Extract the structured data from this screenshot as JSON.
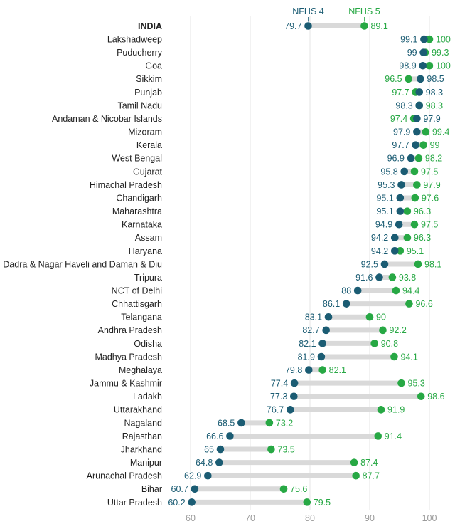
{
  "chart_data": {
    "type": "dumbbell",
    "series": [
      {
        "name": "NFHS 4",
        "color": "#1b5c73"
      },
      {
        "name": "NFHS 5",
        "color": "#27a844"
      }
    ],
    "xlim": [
      55,
      102
    ],
    "xticks": [
      60,
      70,
      80,
      90,
      100
    ],
    "tick_labels": [
      "60",
      "70",
      "80",
      "90",
      "100"
    ],
    "rows": [
      {
        "label": "INDIA",
        "bold": true,
        "nfhs4": 79.7,
        "nfhs5": 89.1,
        "nfhs4_text": "79.7",
        "nfhs5_text": "89.1"
      },
      {
        "label": "Lakshadweep",
        "nfhs4": 99.1,
        "nfhs5": 100,
        "nfhs4_text": "99.1",
        "nfhs5_text": "100"
      },
      {
        "label": "Puducherry",
        "nfhs4": 99,
        "nfhs5": 99.3,
        "nfhs4_text": "99",
        "nfhs5_text": "99.3"
      },
      {
        "label": "Goa",
        "nfhs4": 98.9,
        "nfhs5": 100,
        "nfhs4_text": "98.9",
        "nfhs5_text": "100"
      },
      {
        "label": "Sikkim",
        "nfhs4": 98.5,
        "nfhs5": 96.5,
        "nfhs4_text": "98.5",
        "nfhs5_text": "96.5"
      },
      {
        "label": "Punjab",
        "nfhs4": 98.3,
        "nfhs5": 97.7,
        "nfhs4_text": "98.3",
        "nfhs5_text": "97.7"
      },
      {
        "label": "Tamil Nadu",
        "nfhs4": 98.3,
        "nfhs5": 98.3,
        "nfhs4_text": "98.3",
        "nfhs5_text": "98.3"
      },
      {
        "label": "Andaman & Nicobar Islands",
        "nfhs4": 97.9,
        "nfhs5": 97.4,
        "nfhs4_text": "97.9",
        "nfhs5_text": "97.4"
      },
      {
        "label": "Mizoram",
        "nfhs4": 97.9,
        "nfhs5": 99.4,
        "nfhs4_text": "97.9",
        "nfhs5_text": "99.4"
      },
      {
        "label": "Kerala",
        "nfhs4": 97.7,
        "nfhs5": 99,
        "nfhs4_text": "97.7",
        "nfhs5_text": "99"
      },
      {
        "label": "West Bengal",
        "nfhs4": 96.9,
        "nfhs5": 98.2,
        "nfhs4_text": "96.9",
        "nfhs5_text": "98.2"
      },
      {
        "label": "Gujarat",
        "nfhs4": 95.8,
        "nfhs5": 97.5,
        "nfhs4_text": "95.8",
        "nfhs5_text": "97.5"
      },
      {
        "label": "Himachal Pradesh",
        "nfhs4": 95.3,
        "nfhs5": 97.9,
        "nfhs4_text": "95.3",
        "nfhs5_text": "97.9"
      },
      {
        "label": "Chandigarh",
        "nfhs4": 95.1,
        "nfhs5": 97.6,
        "nfhs4_text": "95.1",
        "nfhs5_text": "97.6"
      },
      {
        "label": "Maharashtra",
        "nfhs4": 95.1,
        "nfhs5": 96.3,
        "nfhs4_text": "95.1",
        "nfhs5_text": "96.3"
      },
      {
        "label": "Karnataka",
        "nfhs4": 94.9,
        "nfhs5": 97.5,
        "nfhs4_text": "94.9",
        "nfhs5_text": "97.5"
      },
      {
        "label": "Assam",
        "nfhs4": 94.2,
        "nfhs5": 96.3,
        "nfhs4_text": "94.2",
        "nfhs5_text": "96.3"
      },
      {
        "label": "Haryana",
        "nfhs4": 94.2,
        "nfhs5": 95.1,
        "nfhs4_text": "94.2",
        "nfhs5_text": "95.1"
      },
      {
        "label": "Dadra & Nagar Haveli and Daman & Diu",
        "nfhs4": 92.5,
        "nfhs5": 98.1,
        "nfhs4_text": "92.5",
        "nfhs5_text": "98.1"
      },
      {
        "label": "Tripura",
        "nfhs4": 91.6,
        "nfhs5": 93.8,
        "nfhs4_text": "91.6",
        "nfhs5_text": "93.8"
      },
      {
        "label": "NCT of Delhi",
        "nfhs4": 88,
        "nfhs5": 94.4,
        "nfhs4_text": "88",
        "nfhs5_text": "94.4"
      },
      {
        "label": "Chhattisgarh",
        "nfhs4": 86.1,
        "nfhs5": 96.6,
        "nfhs4_text": "86.1",
        "nfhs5_text": "96.6"
      },
      {
        "label": "Telangana",
        "nfhs4": 83.1,
        "nfhs5": 90,
        "nfhs4_text": "83.1",
        "nfhs5_text": "90"
      },
      {
        "label": "Andhra Pradesh",
        "nfhs4": 82.7,
        "nfhs5": 92.2,
        "nfhs4_text": "82.7",
        "nfhs5_text": "92.2"
      },
      {
        "label": "Odisha",
        "nfhs4": 82.1,
        "nfhs5": 90.8,
        "nfhs4_text": "82.1",
        "nfhs5_text": "90.8"
      },
      {
        "label": "Madhya Pradesh",
        "nfhs4": 81.9,
        "nfhs5": 94.1,
        "nfhs4_text": "81.9",
        "nfhs5_text": "94.1"
      },
      {
        "label": "Meghalaya",
        "nfhs4": 79.8,
        "nfhs5": 82.1,
        "nfhs4_text": "79.8",
        "nfhs5_text": "82.1"
      },
      {
        "label": "Jammu & Kashmir",
        "nfhs4": 77.4,
        "nfhs5": 95.3,
        "nfhs4_text": "77.4",
        "nfhs5_text": "95.3"
      },
      {
        "label": "Ladakh",
        "nfhs4": 77.3,
        "nfhs5": 98.6,
        "nfhs4_text": "77.3",
        "nfhs5_text": "98.6"
      },
      {
        "label": "Uttarakhand",
        "nfhs4": 76.7,
        "nfhs5": 91.9,
        "nfhs4_text": "76.7",
        "nfhs5_text": "91.9"
      },
      {
        "label": "Nagaland",
        "nfhs4": 68.5,
        "nfhs5": 73.2,
        "nfhs4_text": "68.5",
        "nfhs5_text": "73.2"
      },
      {
        "label": "Rajasthan",
        "nfhs4": 66.6,
        "nfhs5": 91.4,
        "nfhs4_text": "66.6",
        "nfhs5_text": "91.4"
      },
      {
        "label": "Jharkhand",
        "nfhs4": 65,
        "nfhs5": 73.5,
        "nfhs4_text": "65",
        "nfhs5_text": "73.5"
      },
      {
        "label": "Manipur",
        "nfhs4": 64.8,
        "nfhs5": 87.4,
        "nfhs4_text": "64.8",
        "nfhs5_text": "87.4"
      },
      {
        "label": "Arunachal Pradesh",
        "nfhs4": 62.9,
        "nfhs5": 87.7,
        "nfhs4_text": "62.9",
        "nfhs5_text": "87.7"
      },
      {
        "label": "Bihar",
        "nfhs4": 60.7,
        "nfhs5": 75.6,
        "nfhs4_text": "60.7",
        "nfhs5_text": "75.6"
      },
      {
        "label": "Uttar Pradesh",
        "nfhs4": 60.2,
        "nfhs5": 79.5,
        "nfhs4_text": "60.2",
        "nfhs5_text": "79.5"
      }
    ]
  }
}
